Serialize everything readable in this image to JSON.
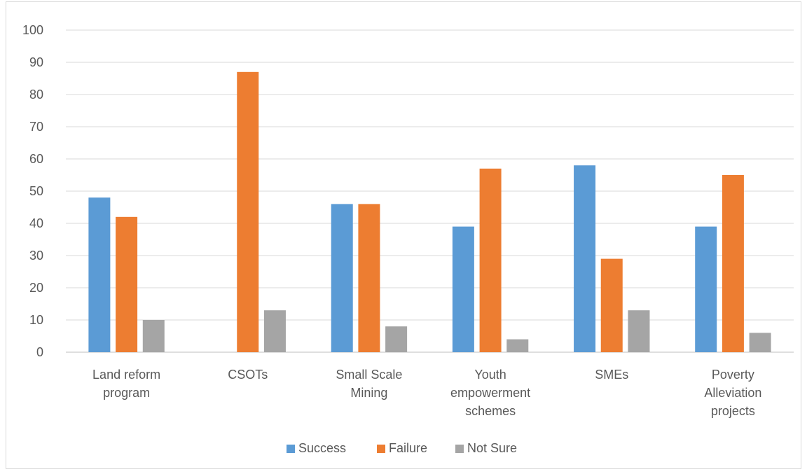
{
  "chart_data": {
    "type": "bar",
    "categories": [
      [
        "Land reform",
        "program"
      ],
      [
        "CSOTs"
      ],
      [
        "Small Scale",
        "Mining"
      ],
      [
        "Youth",
        "empowerment",
        "schemes"
      ],
      [
        "SMEs"
      ],
      [
        "Poverty",
        "Alleviation",
        "projects"
      ]
    ],
    "series": [
      {
        "name": "Success",
        "color": "#5b9bd5",
        "values": [
          48,
          0,
          46,
          39,
          58,
          39
        ]
      },
      {
        "name": "Failure",
        "color": "#ed7d31",
        "values": [
          42,
          87,
          46,
          57,
          29,
          55
        ]
      },
      {
        "name": "Not Sure",
        "color": "#a5a5a5",
        "values": [
          10,
          13,
          8,
          4,
          13,
          6
        ]
      }
    ],
    "ylim": [
      0,
      100
    ],
    "yticks": [
      "0",
      "10",
      "20",
      "30",
      "40",
      "50",
      "60",
      "70",
      "80",
      "90",
      "100"
    ],
    "grid": true,
    "legend_position": "bottom"
  }
}
